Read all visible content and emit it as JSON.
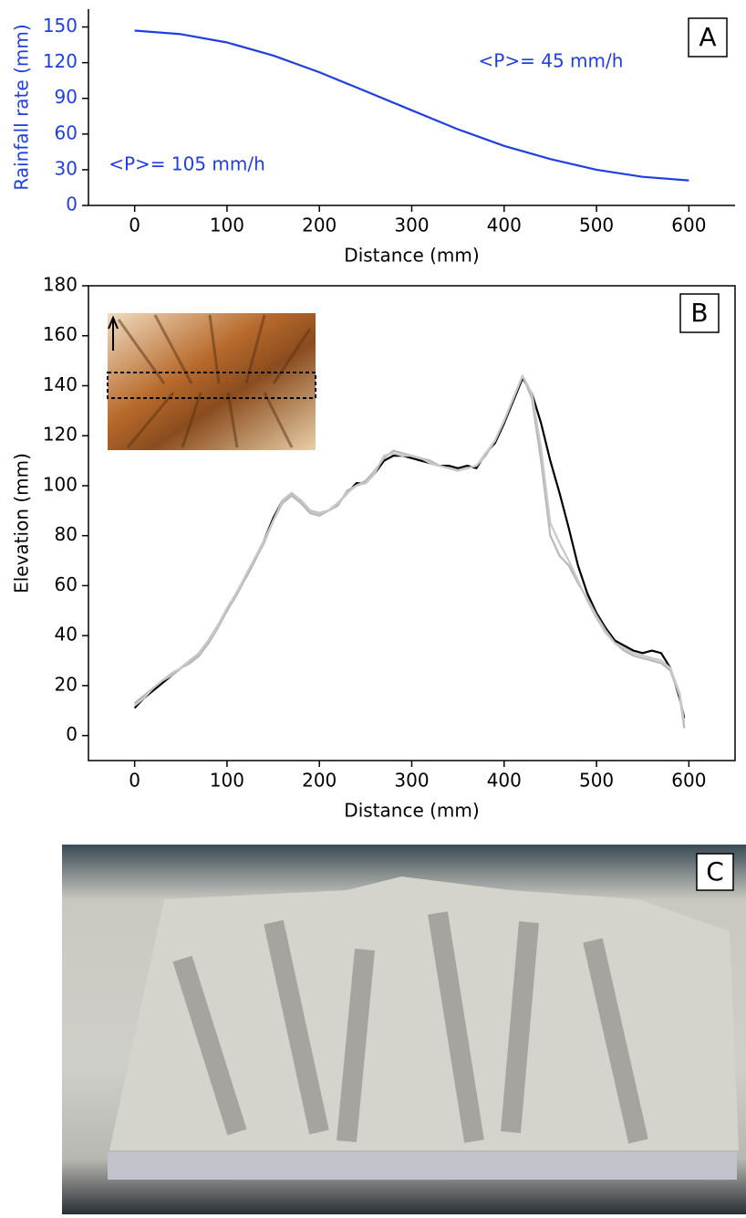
{
  "chart_data": [
    {
      "type": "line",
      "panel_label": "A",
      "xlabel": "Distance (mm)",
      "ylabel": "Rainfall rate (mm)",
      "annotations": [
        "<P>= 45 mm/h",
        "<P>= 105 mm/h"
      ],
      "x": [
        0,
        50,
        100,
        150,
        200,
        250,
        300,
        350,
        400,
        450,
        500,
        550,
        600
      ],
      "series": [
        {
          "color": "#1f3fe0",
          "values": [
            147,
            144,
            137,
            126,
            112,
            96,
            80,
            64,
            50,
            39,
            30,
            24,
            21
          ]
        }
      ],
      "xlim": [
        -50,
        650
      ],
      "ylim": [
        0,
        165
      ],
      "xticks": [
        0,
        100,
        200,
        300,
        400,
        500,
        600
      ],
      "yticks": [
        0,
        30,
        60,
        90,
        120,
        150
      ]
    },
    {
      "type": "line",
      "panel_label": "B",
      "xlabel": "Distance (mm)",
      "ylabel": "Elevation (mm)",
      "x": [
        0,
        10,
        20,
        30,
        40,
        50,
        60,
        70,
        80,
        90,
        100,
        110,
        120,
        130,
        140,
        150,
        160,
        170,
        180,
        190,
        200,
        210,
        220,
        230,
        240,
        250,
        260,
        270,
        280,
        290,
        300,
        310,
        320,
        330,
        340,
        350,
        360,
        370,
        380,
        390,
        400,
        410,
        420,
        430,
        440,
        450,
        460,
        470,
        480,
        490,
        500,
        510,
        520,
        530,
        540,
        550,
        560,
        570,
        580,
        590,
        595
      ],
      "series": [
        {
          "color": "#000000",
          "values": [
            11,
            15,
            18,
            21,
            24,
            27,
            30,
            33,
            38,
            44,
            50,
            57,
            63,
            70,
            78,
            87,
            94,
            97,
            94,
            90,
            89,
            90,
            93,
            97,
            101,
            101,
            105,
            110,
            112,
            112,
            111,
            110,
            109,
            108,
            108,
            107,
            108,
            107,
            113,
            117,
            125,
            134,
            143,
            137,
            125,
            110,
            97,
            83,
            68,
            57,
            49,
            43,
            38,
            36,
            34,
            33,
            34,
            33,
            27,
            15,
            7
          ]
        },
        {
          "color": "#b8b8b8",
          "values": [
            13,
            16,
            19,
            22,
            24,
            27,
            29,
            32,
            37,
            43,
            50,
            56,
            63,
            70,
            77,
            86,
            93,
            96,
            93,
            89,
            88,
            90,
            92,
            98,
            100,
            102,
            106,
            111,
            114,
            113,
            112,
            111,
            110,
            108,
            107,
            106,
            107,
            108,
            112,
            118,
            126,
            135,
            144,
            135,
            110,
            80,
            72,
            68,
            61,
            55,
            48,
            42,
            37,
            34,
            32,
            31,
            30,
            29,
            26,
            16,
            3
          ]
        },
        {
          "color": "#c8c8c8",
          "values": [
            12,
            15,
            19,
            22,
            25,
            27,
            30,
            33,
            38,
            44,
            51,
            57,
            64,
            71,
            78,
            86,
            94,
            97,
            94,
            90,
            89,
            90,
            93,
            97,
            100,
            101,
            105,
            112,
            113,
            112,
            112,
            111,
            109,
            108,
            107,
            106,
            107,
            108,
            113,
            118,
            126,
            135,
            144,
            137,
            115,
            85,
            77,
            70,
            62,
            54,
            47,
            41,
            37,
            35,
            33,
            32,
            31,
            30,
            27,
            17,
            5
          ]
        }
      ],
      "xlim": [
        -50,
        650
      ],
      "ylim": [
        -10,
        180
      ],
      "xticks": [
        0,
        100,
        200,
        300,
        400,
        500,
        600
      ],
      "yticks": [
        0,
        20,
        40,
        60,
        80,
        100,
        120,
        140,
        160,
        180
      ]
    }
  ],
  "photo": {
    "label": "C"
  }
}
